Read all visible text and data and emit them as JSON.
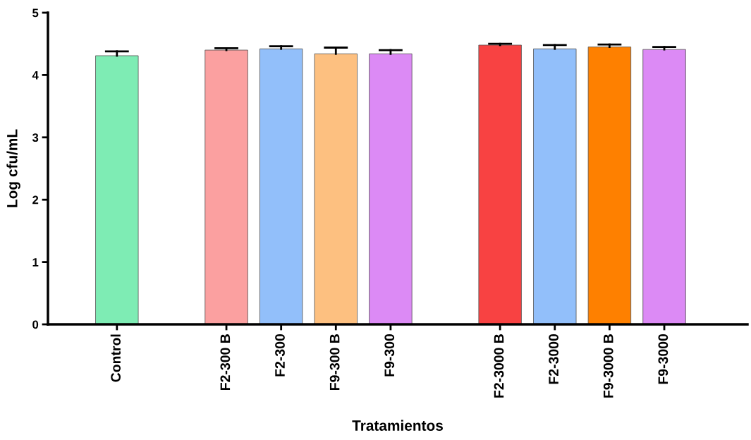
{
  "chart_data": {
    "type": "bar",
    "xlabel": "Tratamientos",
    "ylabel": "Log cfu/mL",
    "categories": [
      "Control",
      null,
      "F2-300 B",
      "F2-300",
      "F9-300 B",
      "F9-300",
      null,
      "F2-3000 B",
      "F2-3000",
      "F9-3000 B",
      "F9-3000"
    ],
    "values": [
      4.31,
      null,
      4.4,
      4.42,
      4.34,
      4.34,
      null,
      4.48,
      4.42,
      4.45,
      4.41
    ],
    "errors": [
      [
        4.31,
        4.38
      ],
      null,
      [
        4.4,
        4.43
      ],
      [
        4.42,
        4.46
      ],
      [
        4.34,
        4.44
      ],
      [
        4.34,
        4.4
      ],
      null,
      [
        4.48,
        4.5
      ],
      [
        4.42,
        4.48
      ],
      [
        4.45,
        4.49
      ],
      [
        4.41,
        4.45
      ]
    ],
    "colors": [
      "#7eecb4",
      null,
      "#fba0a0",
      "#92bffa",
      "#fdc080",
      "#dc8af5",
      null,
      "#f84242",
      "#92bffa",
      "#fe8000",
      "#dc8af5"
    ],
    "ylim": [
      0,
      5
    ],
    "yticks": [
      0,
      1,
      2,
      3,
      4,
      5
    ],
    "grid": false,
    "legend": false
  }
}
